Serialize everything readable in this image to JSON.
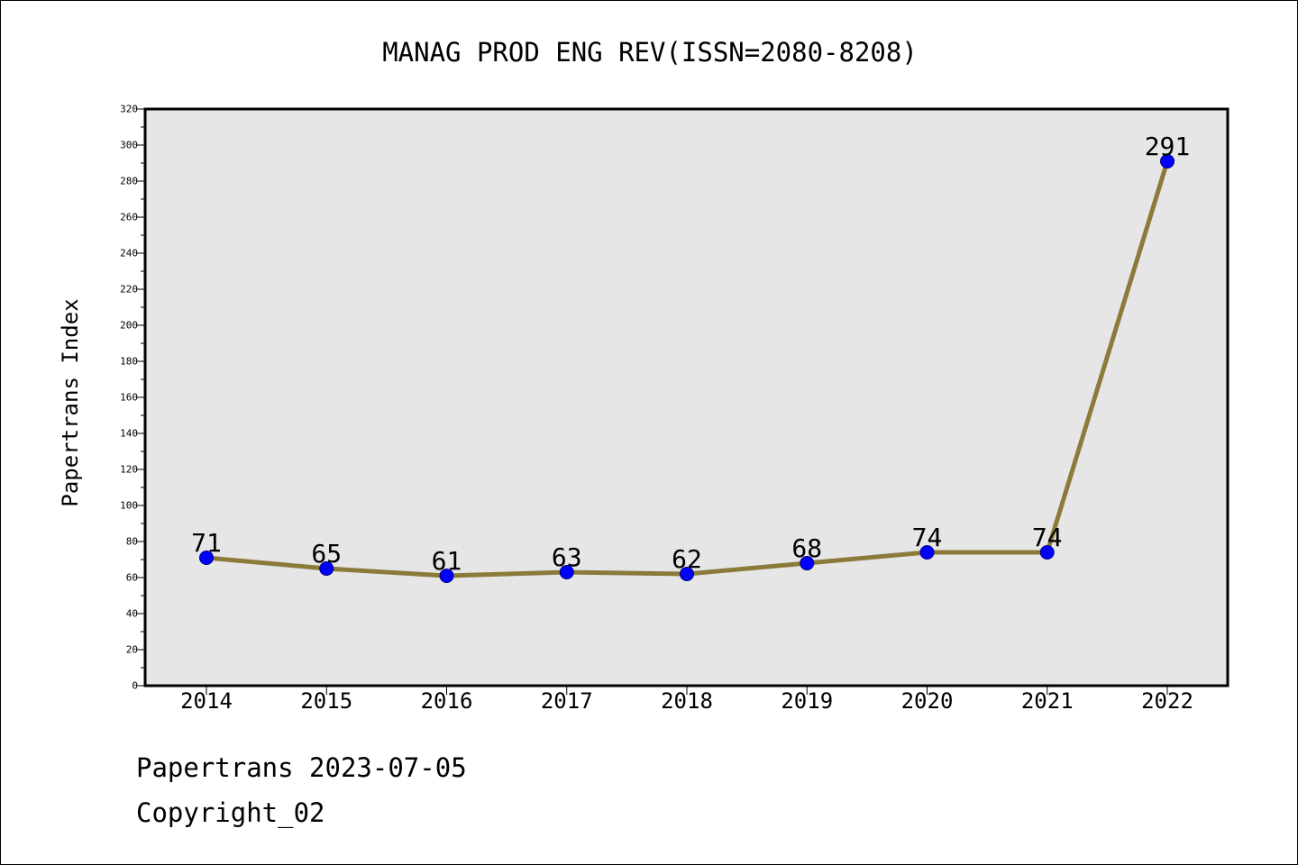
{
  "chart_data": {
    "type": "line",
    "title": "MANAG PROD ENG REV(ISSN=2080-8208)",
    "xlabel": "",
    "ylabel": "Papertrans Index",
    "categories": [
      "2014",
      "2015",
      "2016",
      "2017",
      "2018",
      "2019",
      "2020",
      "2021",
      "2022"
    ],
    "series": [
      {
        "values": [
          71,
          65,
          61,
          63,
          62,
          68,
          74,
          74,
          291
        ]
      }
    ],
    "data_labels": [
      "71",
      "65",
      "61",
      "63",
      "62",
      "68",
      "74",
      "74",
      "291"
    ],
    "ylim": [
      0,
      320
    ],
    "y_major_ticks": [
      0,
      20,
      40,
      60,
      80,
      100,
      120,
      140,
      160,
      180,
      200,
      220,
      240,
      260,
      280,
      300,
      320
    ],
    "y_tick_labels": [
      "0",
      "20",
      "40",
      "60",
      "80",
      "100",
      "120",
      "140",
      "160",
      "180",
      "200",
      "220",
      "240",
      "260",
      "280",
      "300",
      "320"
    ],
    "y_minor_step": 10,
    "grid": false,
    "colors": {
      "line": "#8c7a3a",
      "marker_fill": "#0000ff",
      "marker_edge": "#000080",
      "plot_background": "#e6e6e6",
      "frame": "#000000"
    }
  },
  "footer": {
    "date_line": "Papertrans 2023-07-05",
    "copyright_line": "Copyright_02"
  }
}
